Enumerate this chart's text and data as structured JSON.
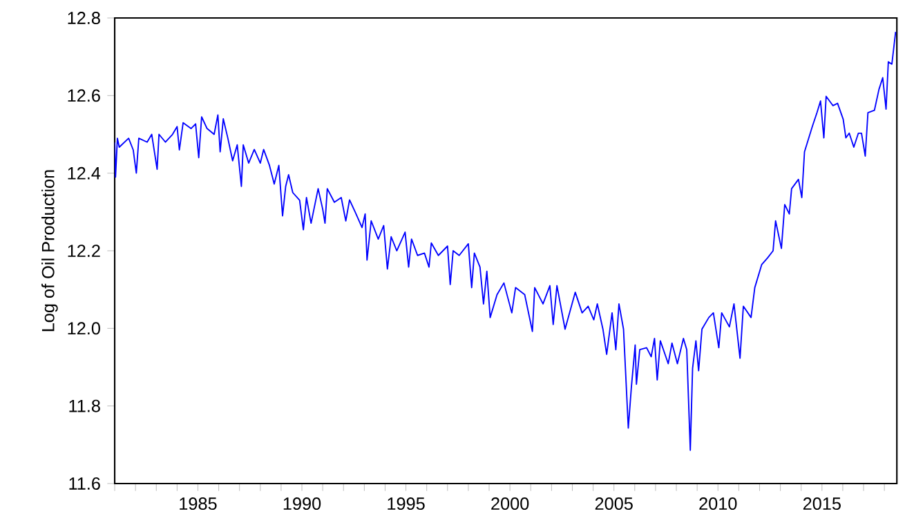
{
  "chart_data": {
    "type": "line",
    "ylabel": "Log of Oil Production",
    "xlim": [
      1981,
      2018.6
    ],
    "ylim": [
      11.6,
      12.8
    ],
    "xticks": [
      {
        "value": 1981,
        "label": null
      },
      {
        "value": 1982,
        "label": null
      },
      {
        "value": 1983,
        "label": null
      },
      {
        "value": 1984,
        "label": null
      },
      1985,
      {
        "value": 1986,
        "label": null
      },
      {
        "value": 1987,
        "label": null
      },
      {
        "value": 1988,
        "label": null
      },
      {
        "value": 1989,
        "label": null
      },
      1990,
      {
        "value": 1991,
        "label": null
      },
      {
        "value": 1992,
        "label": null
      },
      {
        "value": 1993,
        "label": null
      },
      {
        "value": 1994,
        "label": null
      },
      1995,
      {
        "value": 1996,
        "label": null
      },
      {
        "value": 1997,
        "label": null
      },
      {
        "value": 1998,
        "label": null
      },
      {
        "value": 1999,
        "label": null
      },
      2000,
      {
        "value": 2001,
        "label": null
      },
      {
        "value": 2002,
        "label": null
      },
      {
        "value": 2003,
        "label": null
      },
      {
        "value": 2004,
        "label": null
      },
      2005,
      {
        "value": 2006,
        "label": null
      },
      {
        "value": 2007,
        "label": null
      },
      {
        "value": 2008,
        "label": null
      },
      {
        "value": 2009,
        "label": null
      },
      2010,
      {
        "value": 2011,
        "label": null
      },
      {
        "value": 2012,
        "label": null
      },
      {
        "value": 2013,
        "label": null
      },
      {
        "value": 2014,
        "label": null
      },
      2015,
      {
        "value": 2016,
        "label": null
      },
      {
        "value": 2017,
        "label": null
      },
      {
        "value": 2018,
        "label": null
      }
    ],
    "yticks": [
      11.6,
      11.8,
      {
        "value": 12,
        "label": "12.0"
      },
      12.2,
      12.4,
      12.6,
      12.8
    ],
    "series": [
      {
        "color": "#0000ff",
        "x": [
          1981.0,
          1981.04,
          1981.13,
          1981.22,
          1981.67,
          1981.89,
          1982.04,
          1982.16,
          1982.56,
          1982.78,
          1983.04,
          1983.13,
          1983.44,
          1983.78,
          1984.0,
          1984.11,
          1984.29,
          1984.67,
          1984.89,
          1985.04,
          1985.18,
          1985.44,
          1985.78,
          1985.96,
          1986.07,
          1986.22,
          1986.44,
          1986.67,
          1986.89,
          1987.09,
          1987.18,
          1987.44,
          1987.71,
          1988.0,
          1988.16,
          1988.44,
          1988.67,
          1988.89,
          1989.07,
          1989.22,
          1989.36,
          1989.56,
          1989.89,
          1990.07,
          1990.22,
          1990.44,
          1990.78,
          1991.0,
          1991.11,
          1991.22,
          1991.56,
          1991.89,
          1992.11,
          1992.29,
          1992.56,
          1992.89,
          1993.04,
          1993.13,
          1993.33,
          1993.67,
          1993.93,
          1994.11,
          1994.29,
          1994.56,
          1994.96,
          1995.13,
          1995.27,
          1995.56,
          1995.89,
          1996.11,
          1996.22,
          1996.56,
          1997.0,
          1997.13,
          1997.27,
          1997.56,
          1998.0,
          1998.16,
          1998.29,
          1998.56,
          1998.73,
          1998.89,
          1999.05,
          1999.38,
          1999.71,
          2000.09,
          2000.27,
          2000.71,
          2001.08,
          2001.19,
          2001.59,
          2001.92,
          2002.08,
          2002.26,
          2002.65,
          2003.14,
          2003.47,
          2003.76,
          2004.03,
          2004.2,
          2004.47,
          2004.65,
          2004.91,
          2005.09,
          2005.24,
          2005.46,
          2005.69,
          2005.84,
          2006.02,
          2006.08,
          2006.24,
          2006.57,
          2006.79,
          2006.95,
          2007.08,
          2007.23,
          2007.61,
          2007.79,
          2008.05,
          2008.34,
          2008.5,
          2008.67,
          2008.78,
          2008.94,
          2009.07,
          2009.23,
          2009.56,
          2009.78,
          2010.04,
          2010.18,
          2010.55,
          2010.77,
          2011.06,
          2011.22,
          2011.59,
          2011.77,
          2012.1,
          2012.39,
          2012.65,
          2012.77,
          2013.05,
          2013.21,
          2013.43,
          2013.54,
          2013.87,
          2014.03,
          2014.16,
          2014.54,
          2014.76,
          2014.93,
          2015.09,
          2015.2,
          2015.53,
          2015.75,
          2016.02,
          2016.15,
          2016.31,
          2016.53,
          2016.75,
          2016.9,
          2017.08,
          2017.21,
          2017.52,
          2017.74,
          2017.92,
          2018.08,
          2018.19,
          2018.36,
          2018.54
        ],
        "values": [
          12.479,
          12.39,
          12.49,
          12.467,
          12.49,
          12.46,
          12.4,
          12.49,
          12.48,
          12.5,
          12.41,
          12.5,
          12.48,
          12.5,
          12.52,
          12.46,
          12.53,
          12.515,
          12.527,
          12.44,
          12.545,
          12.515,
          12.5,
          12.55,
          12.455,
          12.54,
          12.49,
          12.432,
          12.473,
          12.366,
          12.473,
          12.426,
          12.461,
          12.426,
          12.461,
          12.42,
          12.372,
          12.42,
          12.29,
          12.366,
          12.396,
          12.35,
          12.33,
          12.254,
          12.337,
          12.271,
          12.36,
          12.307,
          12.271,
          12.36,
          12.325,
          12.337,
          12.277,
          12.331,
          12.3,
          12.26,
          12.295,
          12.176,
          12.277,
          12.23,
          12.265,
          12.153,
          12.236,
          12.2,
          12.248,
          12.158,
          12.23,
          12.188,
          12.194,
          12.158,
          12.22,
          12.188,
          12.212,
          12.113,
          12.2,
          12.188,
          12.218,
          12.105,
          12.194,
          12.158,
          12.063,
          12.147,
          12.028,
          12.087,
          12.117,
          12.04,
          12.105,
          12.087,
          11.992,
          12.105,
          12.063,
          12.11,
          12.01,
          12.11,
          11.998,
          12.093,
          12.04,
          12.057,
          12.022,
          12.063,
          11.998,
          11.933,
          12.04,
          11.945,
          12.063,
          11.998,
          11.743,
          11.85,
          11.957,
          11.856,
          11.945,
          11.95,
          11.927,
          11.974,
          11.867,
          11.968,
          11.909,
          11.962,
          11.909,
          11.974,
          11.945,
          11.686,
          11.897,
          11.968,
          11.891,
          11.998,
          12.028,
          12.04,
          11.95,
          12.04,
          12.004,
          12.063,
          11.923,
          12.057,
          12.028,
          12.105,
          12.164,
          12.182,
          12.2,
          12.277,
          12.206,
          12.319,
          12.295,
          12.36,
          12.384,
          12.337,
          12.455,
          12.521,
          12.556,
          12.586,
          12.491,
          12.598,
          12.574,
          12.58,
          12.539,
          12.491,
          12.503,
          12.467,
          12.503,
          12.503,
          12.444,
          12.556,
          12.562,
          12.616,
          12.646,
          12.565,
          12.687,
          12.681,
          12.764
        ]
      }
    ]
  }
}
